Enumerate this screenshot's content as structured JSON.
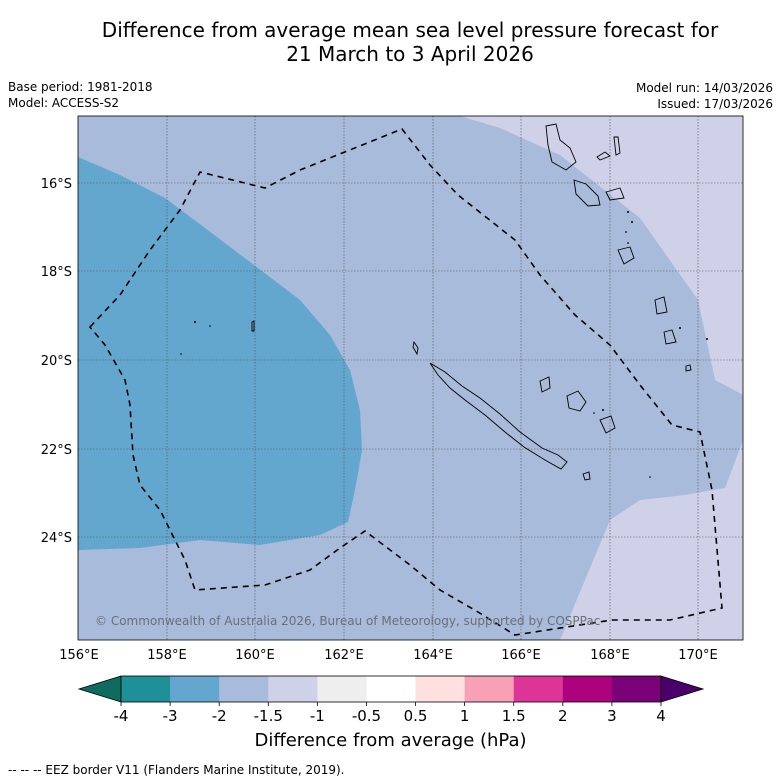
{
  "title_line1": "Difference from average mean sea level pressure forecast for",
  "title_line2": "21 March to 3 April 2026",
  "base_period": "Base period: 1981-2018",
  "model": "Model: ACCESS-S2",
  "model_run": "Model run: 14/03/2026",
  "issued": "Issued: 17/03/2026",
  "copyright": "© Commonwealth of Australia 2026, Bureau of Meteorology, supported by COSPPac",
  "lat_labels": [
    "16°S",
    "18°S",
    "20°S",
    "22°S",
    "24°S"
  ],
  "lon_labels": [
    "156°E",
    "158°E",
    "160°E",
    "162°E",
    "164°E",
    "166°E",
    "168°E",
    "170°E"
  ],
  "colorbar": {
    "title": "Difference from average (hPa)",
    "ticks": [
      "-4",
      "-3",
      "-2",
      "-1.5",
      "-1",
      "-0.5",
      "0.5",
      "1",
      "1.5",
      "2",
      "3",
      "4"
    ],
    "colors": [
      "#0f6b5e",
      "#1f9097",
      "#63a7ce",
      "#a8bbdb",
      "#cfd1e8",
      "#eeeeee",
      "#ffffff",
      "#ffdfe0",
      "#f7a0b6",
      "#dd3497",
      "#ae017e",
      "#7a0177",
      "#49006a"
    ]
  },
  "legend_footer": "--  --  -- EEZ border V11 (Flanders Marine Institute, 2019)."
}
